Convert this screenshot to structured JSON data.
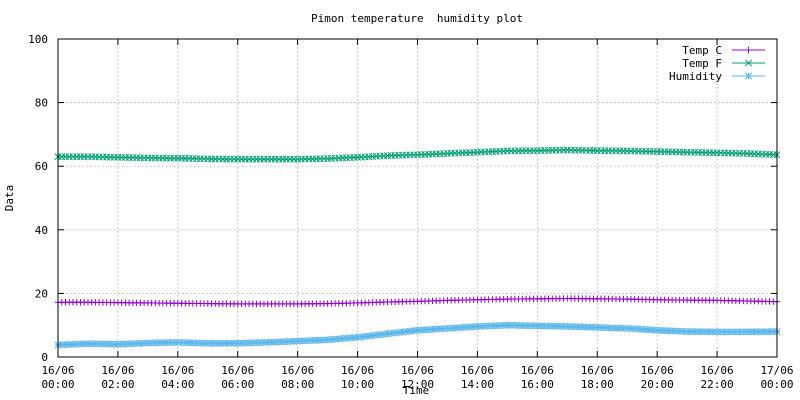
{
  "chart_data": {
    "type": "line",
    "title": "Pimon temperature  humidity plot",
    "xlabel": "Time",
    "ylabel": "Data",
    "ylim": [
      0,
      100
    ],
    "yticks": [
      0,
      20,
      40,
      60,
      80,
      100
    ],
    "xlim": [
      "16/06 00:00",
      "17/06 00:00"
    ],
    "xticks": [
      {
        "date": "16/06",
        "time": "00:00"
      },
      {
        "date": "16/06",
        "time": "02:00"
      },
      {
        "date": "16/06",
        "time": "04:00"
      },
      {
        "date": "16/06",
        "time": "06:00"
      },
      {
        "date": "16/06",
        "time": "08:00"
      },
      {
        "date": "16/06",
        "time": "10:00"
      },
      {
        "date": "16/06",
        "time": "12:00"
      },
      {
        "date": "16/06",
        "time": "14:00"
      },
      {
        "date": "16/06",
        "time": "16:00"
      },
      {
        "date": "16/06",
        "time": "18:00"
      },
      {
        "date": "16/06",
        "time": "20:00"
      },
      {
        "date": "16/06",
        "time": "22:00"
      },
      {
        "date": "17/06",
        "time": "00:00"
      }
    ],
    "grid": true,
    "legend_position": "top-right",
    "x": [
      "16/06 00:00",
      "16/06 01:00",
      "16/06 02:00",
      "16/06 03:00",
      "16/06 04:00",
      "16/06 05:00",
      "16/06 06:00",
      "16/06 07:00",
      "16/06 08:00",
      "16/06 09:00",
      "16/06 10:00",
      "16/06 11:00",
      "16/06 12:00",
      "16/06 13:00",
      "16/06 14:00",
      "16/06 15:00",
      "16/06 16:00",
      "16/06 17:00",
      "16/06 18:00",
      "16/06 19:00",
      "16/06 20:00",
      "16/06 21:00",
      "16/06 22:00",
      "16/06 23:00",
      "17/06 00:00"
    ],
    "series": [
      {
        "name": "Temp C",
        "color": "#9400d3",
        "marker": "plus",
        "values": [
          17.2,
          17.2,
          17.1,
          17.0,
          16.9,
          16.8,
          16.7,
          16.7,
          16.7,
          16.8,
          17.0,
          17.3,
          17.5,
          17.8,
          18.0,
          18.2,
          18.3,
          18.4,
          18.3,
          18.2,
          18.0,
          17.9,
          17.8,
          17.6,
          17.4
        ]
      },
      {
        "name": "Temp F",
        "color": "#009e73",
        "marker": "cross",
        "values": [
          63.0,
          63.0,
          62.8,
          62.6,
          62.5,
          62.3,
          62.2,
          62.2,
          62.2,
          62.4,
          62.8,
          63.3,
          63.6,
          64.0,
          64.4,
          64.8,
          64.9,
          65.1,
          64.9,
          64.8,
          64.6,
          64.4,
          64.2,
          64.0,
          63.6
        ]
      },
      {
        "name": "Humidity",
        "color": "#56b4e9",
        "marker": "star",
        "values": [
          3.8,
          4.2,
          4.0,
          4.4,
          4.6,
          4.3,
          4.3,
          4.6,
          5.0,
          5.4,
          6.2,
          7.3,
          8.4,
          9.0,
          9.6,
          10.0,
          9.8,
          9.6,
          9.3,
          9.0,
          8.4,
          8.0,
          7.9,
          7.9,
          8.0
        ]
      }
    ]
  }
}
